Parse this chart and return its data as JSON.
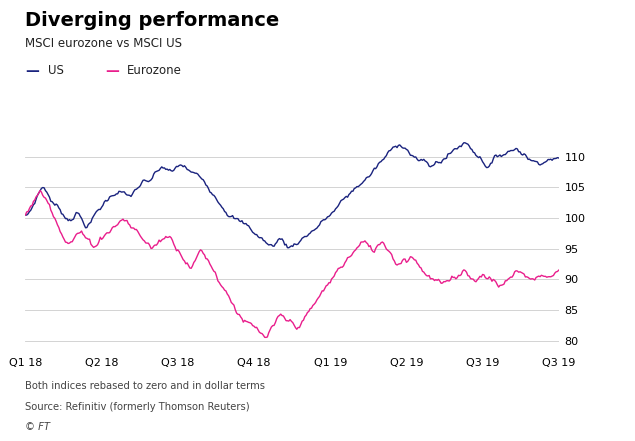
{
  "title": "Diverging performance",
  "subtitle": "MSCI eurozone vs MSCI US",
  "legend_us": "US",
  "legend_eurozone": "Eurozone",
  "us_color": "#1a237e",
  "eurozone_color": "#e91e8c",
  "ylabel_values": [
    80,
    85,
    90,
    95,
    100,
    105,
    110
  ],
  "ylim": [
    78,
    114
  ],
  "xlabel_labels": [
    "Q1 18",
    "Q2 18",
    "Q3 18",
    "Q4 18",
    "Q1 19",
    "Q2 19",
    "Q3 19",
    "Q3 19"
  ],
  "footer_line1": "Both indices rebased to zero and in dollar terms",
  "footer_line2": "Source: Refinitiv (formerly Thomson Reuters)",
  "footer_line3": "© FT",
  "background_color": "#ffffff",
  "grid_color": "#cccccc",
  "us_data": [
    100.5,
    101.2,
    102.8,
    104.5,
    105.1,
    103.8,
    102.5,
    101.8,
    100.9,
    100.2,
    100.8,
    101.5,
    100.2,
    99.5,
    100.1,
    101.2,
    102.0,
    103.1,
    103.8,
    104.6,
    105.2,
    104.5,
    103.8,
    104.5,
    105.3,
    106.0,
    105.4,
    106.2,
    106.8,
    107.5,
    107.1,
    106.5,
    106.9,
    107.3,
    106.8,
    106.1,
    105.5,
    104.8,
    104.2,
    103.5,
    102.8,
    102.1,
    101.4,
    100.8,
    100.2,
    99.5,
    98.8,
    98.2,
    97.5,
    96.8,
    96.2,
    95.5,
    94.8,
    95.4,
    96.0,
    95.3,
    94.7,
    95.3,
    95.9,
    96.6,
    97.2,
    97.9,
    98.5,
    99.2,
    99.8,
    100.5,
    101.2,
    101.9,
    102.6,
    103.3,
    104.0,
    104.8,
    105.5,
    106.2,
    107.0,
    107.8,
    108.5,
    109.3,
    109.8,
    110.4,
    110.8,
    110.2,
    109.5,
    108.8,
    108.2,
    107.6,
    107.0,
    107.5,
    108.0,
    108.6,
    109.2,
    109.8,
    110.4,
    110.9,
    110.5,
    109.8,
    109.2,
    108.5,
    108.0,
    108.5,
    109.0,
    109.5,
    110.0,
    110.3,
    110.7,
    110.4,
    109.9,
    109.3,
    108.8,
    109.2,
    109.6,
    110.0,
    110.3,
    109.8
  ],
  "eurozone_data": [
    100.5,
    101.8,
    103.2,
    104.0,
    103.2,
    102.0,
    100.8,
    99.5,
    98.2,
    97.5,
    98.2,
    99.0,
    98.0,
    97.0,
    96.5,
    97.5,
    98.5,
    99.5,
    100.2,
    100.8,
    101.5,
    100.8,
    99.8,
    99.0,
    98.0,
    97.2,
    96.5,
    97.2,
    97.8,
    98.5,
    97.8,
    97.0,
    96.2,
    95.5,
    94.8,
    96.0,
    97.0,
    96.0,
    94.8,
    93.5,
    92.2,
    91.0,
    89.8,
    88.5,
    87.5,
    86.5,
    85.5,
    84.5,
    83.5,
    82.5,
    83.2,
    83.8,
    84.5,
    83.8,
    83.2,
    82.5,
    83.0,
    83.8,
    84.5,
    85.5,
    86.5,
    87.5,
    88.5,
    89.5,
    90.5,
    91.5,
    92.5,
    93.5,
    94.2,
    94.8,
    93.8,
    93.0,
    93.8,
    94.5,
    93.8,
    92.8,
    91.8,
    92.5,
    93.0,
    93.5,
    92.8,
    92.0,
    91.2,
    90.5,
    89.8,
    89.2,
    88.5,
    89.2,
    89.8,
    90.5,
    91.2,
    90.5,
    89.8,
    90.5,
    91.0,
    90.5,
    89.8,
    89.2,
    89.8,
    90.2,
    90.8,
    91.2,
    90.8,
    90.2,
    89.8,
    90.5,
    91.0,
    90.5,
    91.0,
    91.5
  ]
}
